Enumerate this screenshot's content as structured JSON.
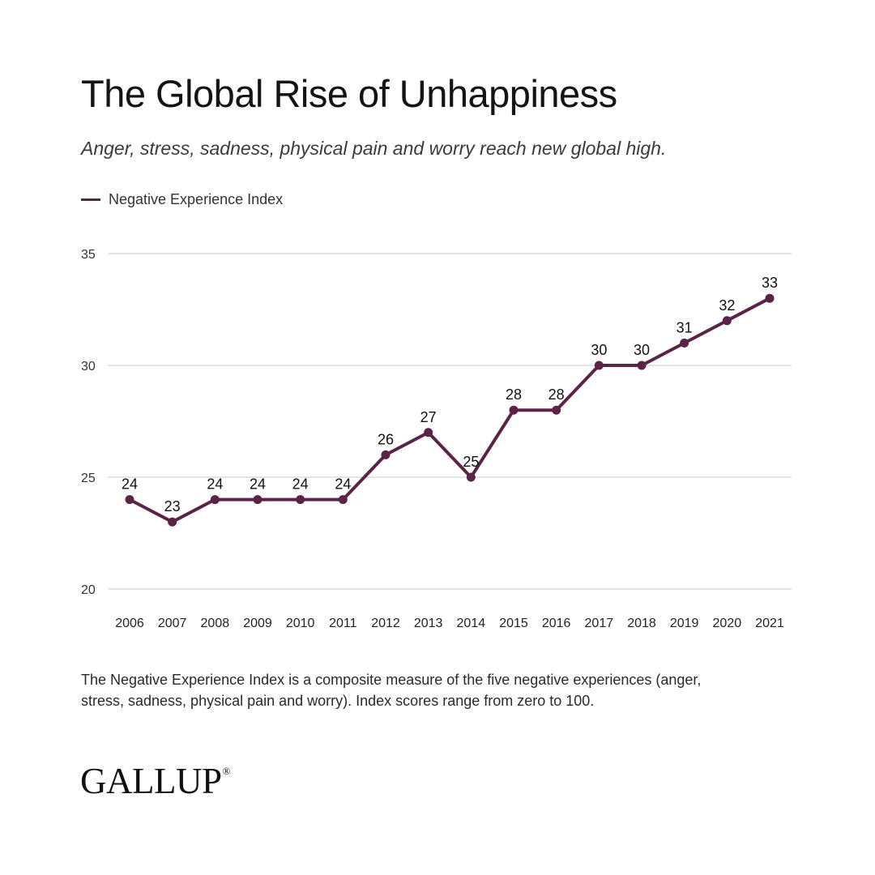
{
  "header": {
    "title": "The Global Rise of Unhappiness",
    "subtitle": "Anger, stress, sadness, physical pain and worry reach new global high."
  },
  "footnote": "The Negative Experience Index is a composite measure of the five negative experiences (anger, stress, sadness, physical pain and worry). Index scores range from zero to 100.",
  "brand": {
    "name": "GALLUP",
    "mark": "®"
  },
  "colors": {
    "series": "#5b2346",
    "grid": "#c8c8c8",
    "text": "#1a1a1a"
  },
  "chart_data": {
    "type": "line",
    "title": "The Global Rise of Unhappiness",
    "subtitle": "Anger, stress, sadness, physical pain and worry reach new global high.",
    "xlabel": "",
    "ylabel": "",
    "x": [
      "2006",
      "2007",
      "2008",
      "2009",
      "2010",
      "2011",
      "2012",
      "2013",
      "2014",
      "2015",
      "2016",
      "2017",
      "2018",
      "2019",
      "2020",
      "2021"
    ],
    "series": [
      {
        "name": "Negative Experience Index",
        "values": [
          24,
          23,
          24,
          24,
          24,
          24,
          26,
          27,
          25,
          28,
          28,
          30,
          30,
          31,
          32,
          33
        ]
      }
    ],
    "ylim": [
      20,
      35
    ],
    "yticks": [
      20,
      25,
      30,
      35
    ],
    "grid": "horizontal",
    "legend": "top-left",
    "data_labels": true
  }
}
